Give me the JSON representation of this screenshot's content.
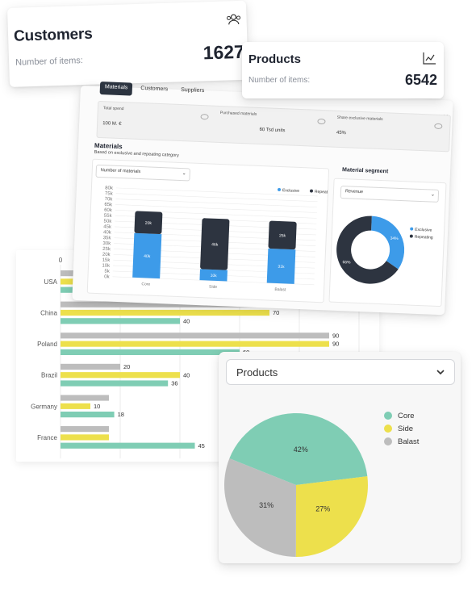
{
  "customers_card": {
    "title": "Customers",
    "subtitle": "Number of items:",
    "value": "1627",
    "icon": "people-icon"
  },
  "products_card": {
    "title": "Products",
    "subtitle": "Number of items:",
    "value": "6542",
    "icon": "chart-icon"
  },
  "dashboard": {
    "tabs": [
      "Materials",
      "Customers",
      "Suppliers"
    ],
    "summary": [
      {
        "label": "Total spend",
        "value": "100 M. €"
      },
      {
        "label": "Purchased materials",
        "value": "60 Tsd units"
      },
      {
        "label": "Share exclusive materials",
        "value": "45%"
      }
    ],
    "materials_title": "Materials",
    "materials_subtitle": "Based on exclusive and repeating category",
    "materials_dropdown": "Number of materials",
    "segment_title": "Material segment",
    "segment_dropdown": "Revenue"
  },
  "chart_data": [
    {
      "type": "bar",
      "stacked": true,
      "categories": [
        "Core",
        "Side",
        "Balast"
      ],
      "series": [
        {
          "name": "Exclusive",
          "values": [
            40,
            10,
            31
          ],
          "labels": [
            "40k",
            "10k",
            "31k"
          ],
          "color": "#3d9be9"
        },
        {
          "name": "Repeating",
          "values": [
            20,
            46,
            25
          ],
          "labels": [
            "20k",
            "46k",
            "25k"
          ],
          "color": "#2d3440"
        }
      ],
      "ylim": [
        0,
        80
      ],
      "yticks": [
        "80k",
        "75k",
        "70k",
        "65k",
        "60k",
        "55k",
        "50k",
        "45k",
        "40k",
        "35k",
        "30k",
        "25k",
        "20k",
        "15k",
        "10k",
        "5k",
        "0k"
      ],
      "legend": "top-right",
      "grid": true
    },
    {
      "type": "pie",
      "donut": true,
      "slices": [
        {
          "name": "Exclusive",
          "value": 34,
          "label": "34%",
          "color": "#3d9be9"
        },
        {
          "name": "Repeating",
          "value": 66,
          "label": "66%",
          "color": "#2d3440"
        }
      ],
      "legend": "right"
    },
    {
      "type": "bar",
      "orientation": "horizontal",
      "categories": [
        "USA",
        "China",
        "Poland",
        "Brazil",
        "Germany",
        "France"
      ],
      "series": [
        {
          "values": [
            null,
            80,
            90,
            20,
            null,
            null
          ],
          "color": "#bdbdbd"
        },
        {
          "values": [
            null,
            70,
            90,
            40,
            10,
            null
          ],
          "color": "#ede04c"
        },
        {
          "values": [
            18,
            40,
            60,
            36,
            18,
            45
          ],
          "color": "#7fcdb4"
        }
      ],
      "x_axis_start_label": "0",
      "grid": true
    },
    {
      "type": "pie",
      "selector": "Products",
      "slices": [
        {
          "name": "Core",
          "value": 42,
          "label": "42%",
          "color": "#7fcdb4"
        },
        {
          "name": "Side",
          "value": 27,
          "label": "27%",
          "color": "#ede04c"
        },
        {
          "name": "Balast",
          "value": 31,
          "label": "31%",
          "color": "#bdbdbd"
        }
      ],
      "legend": "right"
    }
  ]
}
